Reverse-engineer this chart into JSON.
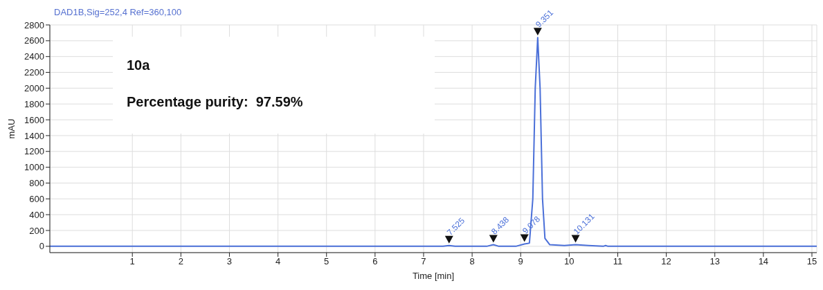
{
  "chart_data": {
    "type": "line",
    "subtitle": "DAD1B,Sig=252,4  Ref=360,100",
    "xlabel": "Time [min]",
    "ylabel": "mAU",
    "xlim": [
      -0.7,
      15.1
    ],
    "xticks": [
      1,
      2,
      3,
      4,
      5,
      6,
      7,
      8,
      9,
      10,
      11,
      12,
      13,
      14,
      15
    ],
    "ylim": [
      -80,
      2800
    ],
    "yticks": [
      0,
      200,
      400,
      600,
      800,
      1000,
      1200,
      1400,
      1600,
      1800,
      2000,
      2200,
      2400,
      2600,
      2800
    ],
    "grid": true,
    "legend": false,
    "marker": "none",
    "line_style": "solid",
    "annotations": [
      "10a",
      "Percentage purity:  97.59%",
      {
        "text": "7.525",
        "x": 7.525,
        "y": 10
      },
      {
        "text": "8.438",
        "x": 8.438,
        "y": 20
      },
      {
        "text": "9.078",
        "x": 9.078,
        "y": 30
      },
      {
        "text": "9.351",
        "x": 9.351,
        "y": 2640
      },
      {
        "text": "10.131",
        "x": 10.131,
        "y": 20
      }
    ],
    "series": [
      {
        "color": "#4a6fd8",
        "x": [
          -0.7,
          7.4,
          7.525,
          7.65,
          8.3,
          8.438,
          8.55,
          8.9,
          9.078,
          9.18,
          9.25,
          9.3,
          9.351,
          9.4,
          9.45,
          9.5,
          9.6,
          9.9,
          10.131,
          10.4,
          10.7,
          10.75,
          10.8,
          15.1
        ],
        "values": [
          0,
          0,
          10,
          0,
          0,
          20,
          0,
          0,
          30,
          40,
          600,
          2000,
          2640,
          2000,
          600,
          100,
          20,
          10,
          20,
          10,
          0,
          10,
          0,
          0
        ]
      }
    ]
  }
}
